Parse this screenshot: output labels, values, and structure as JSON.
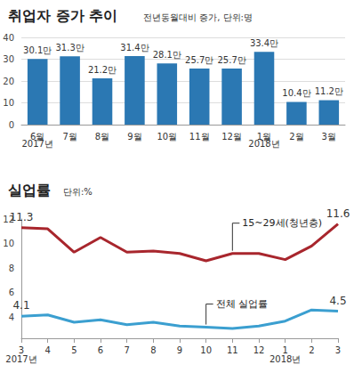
{
  "chart_data": [
    {
      "type": "bar",
      "title": "취업자 증가 추이",
      "subtitle": "전년동월대비 증가, 단위:명",
      "categories": [
        "6월",
        "7월",
        "8월",
        "9월",
        "10월",
        "11월",
        "12월",
        "1월",
        "2월",
        "3월"
      ],
      "values": [
        30.1,
        31.3,
        21.2,
        31.4,
        28.1,
        25.7,
        25.7,
        33.4,
        10.4,
        11.2
      ],
      "value_labels": [
        "30.1만",
        "31.3만",
        "21.2만",
        "31.4만",
        "28.1만",
        "25.7만",
        "25.7만",
        "33.4만",
        "10.4만",
        "11.2만"
      ],
      "color": "#2b78b3",
      "ylim": [
        0,
        40
      ],
      "yticks": [
        0,
        10,
        20,
        30,
        40
      ],
      "grid": true,
      "data_labels": true,
      "annotations": [
        {
          "text": "2017년",
          "at": 0
        },
        {
          "text": "2018년",
          "at": 7
        }
      ]
    },
    {
      "type": "line",
      "title": "실업률",
      "subtitle": "단위:%",
      "categories": [
        "3",
        "4",
        "5",
        "6",
        "7",
        "8",
        "9",
        "10",
        "11",
        "12",
        "1",
        "2",
        "3"
      ],
      "series": [
        {
          "name": "15~29세(청년층)",
          "color": "#a8262d",
          "values": [
            11.3,
            11.2,
            9.3,
            10.5,
            9.3,
            9.4,
            9.2,
            8.6,
            9.2,
            9.2,
            8.7,
            9.8,
            11.6
          ],
          "value_labels": [
            "11.3",
            null,
            null,
            null,
            null,
            null,
            null,
            null,
            null,
            null,
            null,
            null,
            "11.6"
          ]
        },
        {
          "name": "전체 실업률",
          "color": "#3b9fd0",
          "values": [
            4.1,
            4.2,
            3.6,
            3.8,
            3.4,
            3.6,
            3.3,
            3.2,
            3.1,
            3.3,
            3.7,
            4.6,
            4.5
          ],
          "value_labels": [
            "4.1",
            null,
            null,
            null,
            null,
            null,
            null,
            null,
            null,
            null,
            null,
            null,
            "4.5"
          ]
        }
      ],
      "ylim": [
        2.3,
        12
      ],
      "yticks": [
        4,
        6,
        8,
        10,
        12
      ],
      "grid": false,
      "annotations": [
        {
          "text": "2017년",
          "at": 0
        },
        {
          "text": "2018년",
          "at": 10
        }
      ]
    }
  ]
}
